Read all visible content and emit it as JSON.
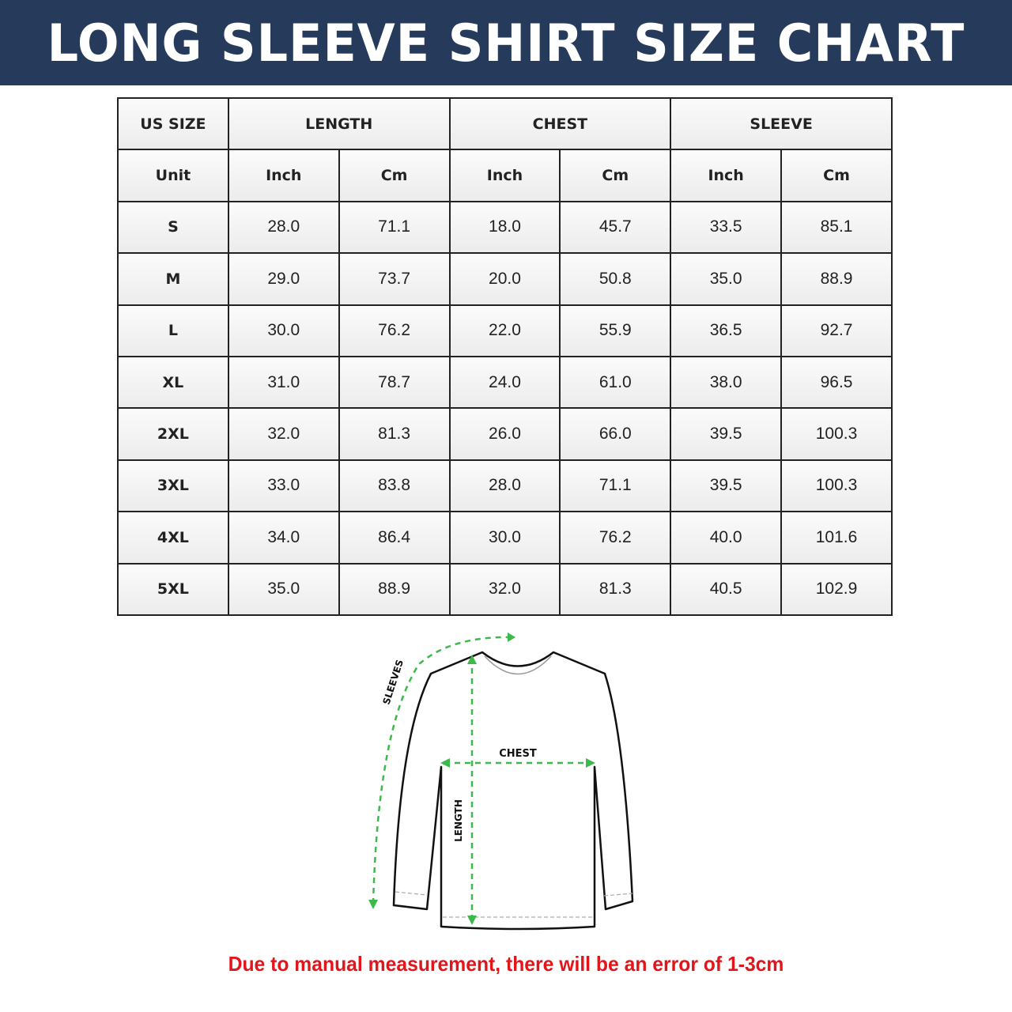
{
  "title": "LONG SLEEVE SHIRT SIZE CHART",
  "table": {
    "header_groups": [
      "US SIZE",
      "LENGTH",
      "CHEST",
      "SLEEVE"
    ],
    "unit_row": [
      "Unit",
      "Inch",
      "Cm",
      "Inch",
      "Cm",
      "Inch",
      "Cm"
    ],
    "rows": [
      [
        "S",
        "28.0",
        "71.1",
        "18.0",
        "45.7",
        "33.5",
        "85.1"
      ],
      [
        "M",
        "29.0",
        "73.7",
        "20.0",
        "50.8",
        "35.0",
        "88.9"
      ],
      [
        "L",
        "30.0",
        "76.2",
        "22.0",
        "55.9",
        "36.5",
        "92.7"
      ],
      [
        "XL",
        "31.0",
        "78.7",
        "24.0",
        "61.0",
        "38.0",
        "96.5"
      ],
      [
        "2XL",
        "32.0",
        "81.3",
        "26.0",
        "66.0",
        "39.5",
        "100.3"
      ],
      [
        "3XL",
        "33.0",
        "83.8",
        "28.0",
        "71.1",
        "39.5",
        "100.3"
      ],
      [
        "4XL",
        "34.0",
        "86.4",
        "30.0",
        "76.2",
        "40.0",
        "101.6"
      ],
      [
        "5XL",
        "35.0",
        "88.9",
        "32.0",
        "81.3",
        "40.5",
        "102.9"
      ]
    ]
  },
  "diagram": {
    "sleeves_label": "SLEEVES",
    "chest_label": "CHEST",
    "length_label": "LENGTH",
    "arrow_color": "#3cb94a"
  },
  "note": "Due to manual measurement, there will be an error of 1-3cm",
  "colors": {
    "banner": "#263a5c",
    "note": "#e3151a"
  }
}
